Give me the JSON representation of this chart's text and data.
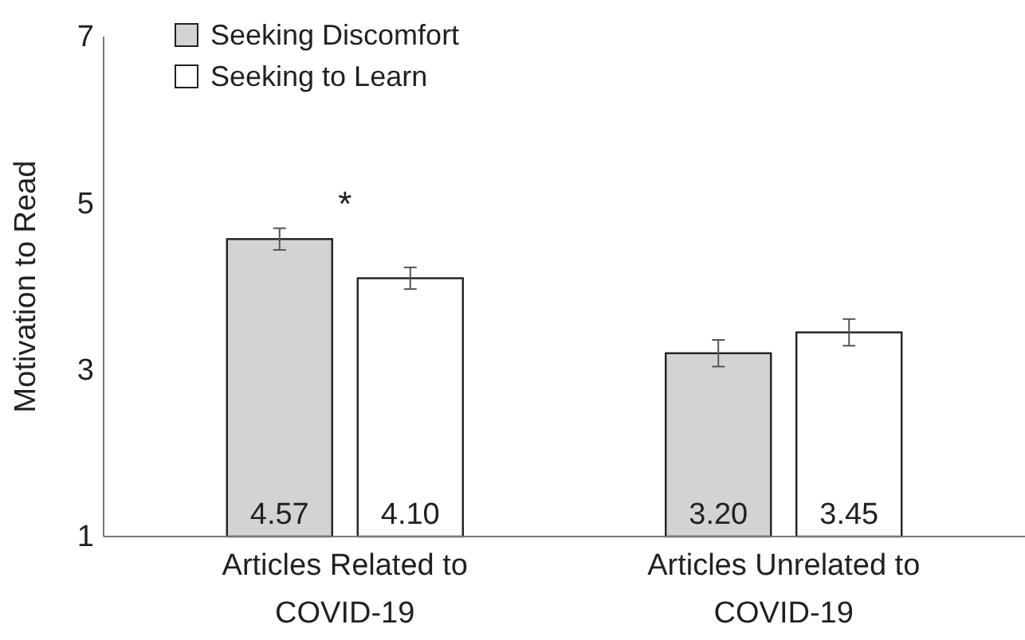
{
  "chart_data": {
    "type": "bar",
    "ylabel": "Motivation to Read",
    "categories": [
      "Articles Related to COVID-19",
      "Articles Unrelated to COVID-19"
    ],
    "series": [
      {
        "name": "Seeking Discomfort",
        "color": "#d1d3d4",
        "values": [
          4.57,
          3.2
        ],
        "errors": [
          0.13,
          0.16
        ],
        "value_labels": [
          "4.57",
          "3.20"
        ]
      },
      {
        "name": "Seeking to Learn",
        "color": "#ffffff",
        "values": [
          4.1,
          3.45
        ],
        "errors": [
          0.13,
          0.16
        ],
        "value_labels": [
          "4.10",
          "3.45"
        ]
      }
    ],
    "ylim": [
      1,
      7
    ],
    "yticks": [
      1,
      3,
      5,
      7
    ],
    "legend": "top left",
    "grid": false,
    "annotations": [
      "*"
    ]
  }
}
